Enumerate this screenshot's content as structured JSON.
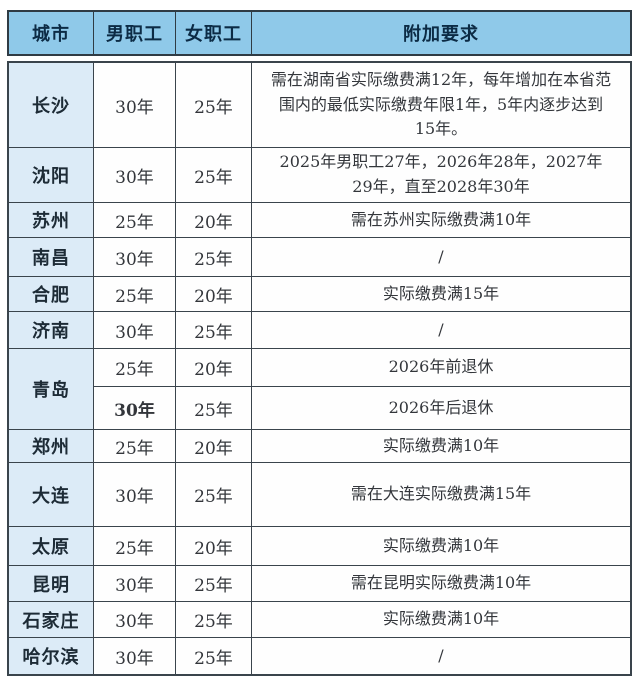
{
  "table": {
    "headers": [
      "城市",
      "男职工",
      "女职工",
      "附加要求"
    ],
    "rows": [
      {
        "city": "长沙",
        "city_rowspan": 1,
        "male": "30年",
        "male_bold": false,
        "female": "25年",
        "req": "需在湖南省实际缴费满12年，每年增加在本省范围内的最低实际缴费年限1年，5年内逐步达到15年。"
      },
      {
        "city": "沈阳",
        "city_rowspan": 1,
        "male": "30年",
        "male_bold": false,
        "female": "25年",
        "req": "2025年男职工27年，2026年28年，2027年29年，直至2028年30年"
      },
      {
        "city": "苏州",
        "city_rowspan": 1,
        "male": "25年",
        "male_bold": false,
        "female": "20年",
        "req": "需在苏州实际缴费满10年"
      },
      {
        "city": "南昌",
        "city_rowspan": 1,
        "male": "30年",
        "male_bold": false,
        "female": "25年",
        "req": "/"
      },
      {
        "city": "合肥",
        "city_rowspan": 1,
        "male": "25年",
        "male_bold": false,
        "female": "20年",
        "req": "实际缴费满15年"
      },
      {
        "city": "济南",
        "city_rowspan": 1,
        "male": "30年",
        "male_bold": false,
        "female": "25年",
        "req": "/"
      },
      {
        "city": "青岛",
        "city_rowspan": 2,
        "male": "25年",
        "male_bold": false,
        "female": "20年",
        "req": "2026年前退休"
      },
      {
        "city": null,
        "city_rowspan": 0,
        "male": "30年",
        "male_bold": true,
        "female": "25年",
        "req": "2026年后退休"
      },
      {
        "city": "郑州",
        "city_rowspan": 1,
        "male": "25年",
        "male_bold": false,
        "female": "20年",
        "req": "实际缴费满10年"
      },
      {
        "city": "大连",
        "city_rowspan": 1,
        "male": "30年",
        "male_bold": false,
        "female": "25年",
        "req": "需在大连实际缴费满15年"
      },
      {
        "city": "太原",
        "city_rowspan": 1,
        "male": "25年",
        "male_bold": false,
        "female": "20年",
        "req": "实际缴费满10年"
      },
      {
        "city": "昆明",
        "city_rowspan": 1,
        "male": "30年",
        "male_bold": false,
        "female": "25年",
        "req": "需在昆明实际缴费满10年"
      },
      {
        "city": "石家庄",
        "city_rowspan": 1,
        "male": "30年",
        "male_bold": false,
        "female": "25年",
        "req": "实际缴费满10年"
      },
      {
        "city": "哈尔滨",
        "city_rowspan": 1,
        "male": "30年",
        "male_bold": false,
        "female": "25年",
        "req": "/"
      }
    ]
  },
  "colors": {
    "header_bg": "#8fc9e9",
    "city_column_bg": "#dcebf7",
    "grid_line": "#3a444c",
    "header_text": "#0c2b45",
    "body_text": "#33363b"
  }
}
